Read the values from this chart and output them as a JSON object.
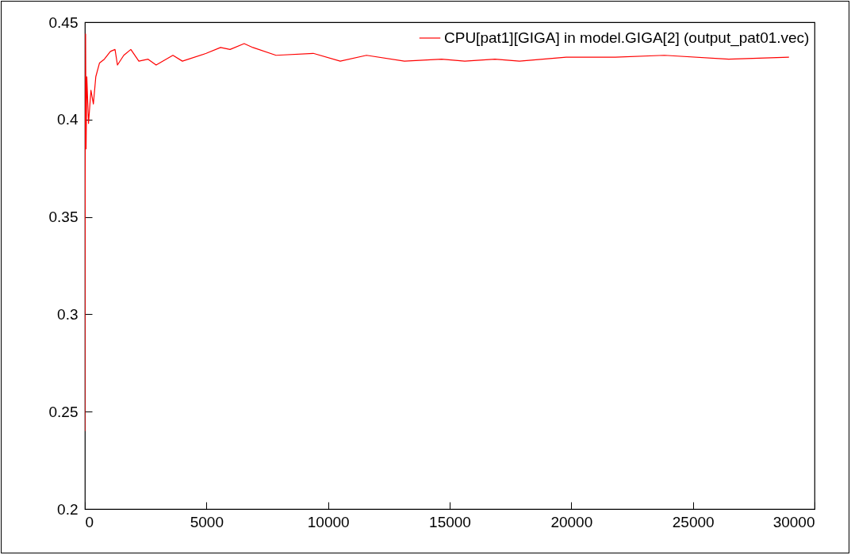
{
  "chart_data": {
    "type": "line",
    "x": [
      0,
      10,
      30,
      50,
      80,
      150,
      250,
      350,
      450,
      600,
      800,
      1050,
      1240,
      1340,
      1600,
      1890,
      2220,
      2600,
      2930,
      3620,
      4010,
      4990,
      5580,
      5970,
      6550,
      6910,
      7860,
      9390,
      10500,
      11580,
      13140,
      14670,
      15620,
      16860,
      17870,
      19790,
      21810,
      23830,
      26470,
      28950
    ],
    "series": [
      {
        "name": "CPU[pat1][GIGA] in model.GIGA[2] (output_pat01.vec)",
        "color": "#ff0000",
        "values": [
          0.24,
          0.35,
          0.444,
          0.385,
          0.422,
          0.398,
          0.415,
          0.408,
          0.422,
          0.429,
          0.431,
          0.435,
          0.436,
          0.428,
          0.433,
          0.436,
          0.43,
          0.431,
          0.428,
          0.433,
          0.43,
          0.434,
          0.437,
          0.436,
          0.439,
          0.437,
          0.433,
          0.434,
          0.43,
          0.433,
          0.43,
          0.431,
          0.43,
          0.431,
          0.43,
          0.432,
          0.432,
          0.433,
          0.431,
          0.432
        ]
      }
    ],
    "xlim": [
      0,
      30000
    ],
    "xticks": [
      0,
      5000,
      10000,
      15000,
      20000,
      25000,
      30000
    ],
    "ylim": [
      0.2,
      0.45
    ],
    "yticks": [
      0.2,
      0.25,
      0.3,
      0.35,
      0.4,
      0.45
    ],
    "legend": "top right",
    "grid": false
  }
}
